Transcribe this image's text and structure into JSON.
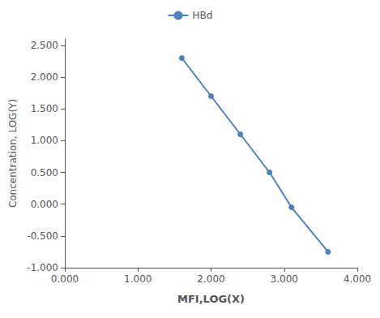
{
  "chart_data": {
    "type": "line",
    "x": [
      1.6,
      2.0,
      2.4,
      2.8,
      3.1,
      3.6
    ],
    "series": [
      {
        "name": "HBd",
        "color": "#4f81bd",
        "marker": "circle",
        "values": [
          2.3,
          1.7,
          1.1,
          0.5,
          -0.05,
          -0.75
        ]
      }
    ],
    "xlabel": "MFI,LOG(X)",
    "ylabel": "Concentration, LOG(Y)",
    "xlim": [
      0.0,
      4.0
    ],
    "ylim": [
      -1.0,
      2.6
    ],
    "xticks": [
      {
        "value": 0.0,
        "label": "0.000"
      },
      {
        "value": 1.0,
        "label": "1.000"
      },
      {
        "value": 2.0,
        "label": "2.000"
      },
      {
        "value": 3.0,
        "label": "3.000"
      },
      {
        "value": 4.0,
        "label": "4.000"
      }
    ],
    "yticks": [
      {
        "value": -1.0,
        "label": "-1.000"
      },
      {
        "value": -0.5,
        "label": "-0.500"
      },
      {
        "value": 0.0,
        "label": "0.000"
      },
      {
        "value": 0.5,
        "label": "0.500"
      },
      {
        "value": 1.0,
        "label": "1.000"
      },
      {
        "value": 1.5,
        "label": "1.500"
      },
      {
        "value": 2.0,
        "label": "2.000"
      },
      {
        "value": 2.5,
        "label": "2.500"
      }
    ],
    "grid": false,
    "legend": "top"
  }
}
